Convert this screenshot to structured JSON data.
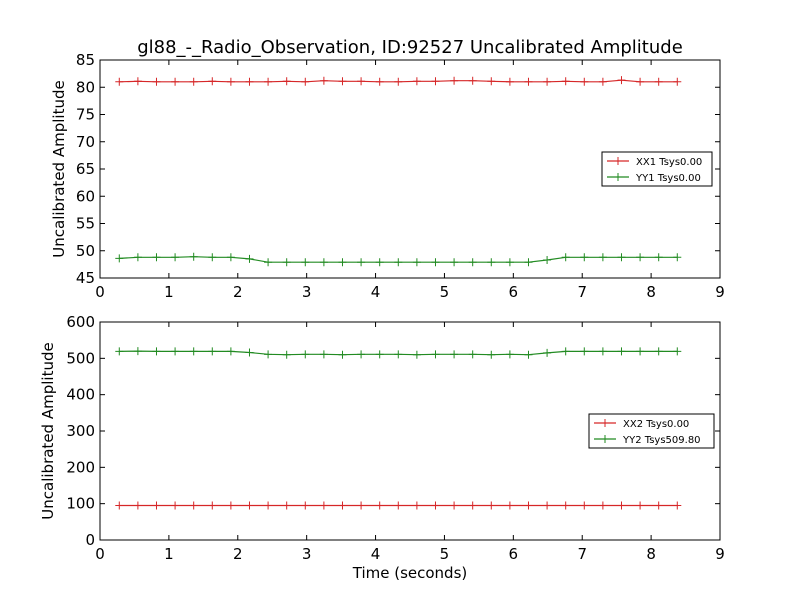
{
  "chart_data": [
    {
      "type": "line",
      "title": "gl88_-_Radio_Observation, ID:92527 Uncalibrated Amplitude",
      "xlabel": "",
      "ylabel": "Uncalibrated Amplitude",
      "xlim": [
        0,
        9
      ],
      "ylim": [
        45,
        85
      ],
      "xticks": [
        0,
        1,
        2,
        3,
        4,
        5,
        6,
        7,
        8,
        9
      ],
      "yticks": [
        45,
        50,
        55,
        60,
        65,
        70,
        75,
        80,
        85
      ],
      "legend": "center-right",
      "x": [
        0.28,
        0.55,
        0.82,
        1.09,
        1.36,
        1.63,
        1.9,
        2.17,
        2.44,
        2.71,
        2.98,
        3.25,
        3.52,
        3.79,
        4.06,
        4.33,
        4.6,
        4.87,
        5.14,
        5.41,
        5.68,
        5.95,
        6.22,
        6.49,
        6.76,
        7.03,
        7.3,
        7.57,
        7.84,
        8.11,
        8.38
      ],
      "series": [
        {
          "name": "XX1 Tsys0.00",
          "color": "#d62728",
          "values": [
            81.0,
            81.1,
            81.0,
            81.0,
            81.0,
            81.1,
            81.0,
            81.0,
            81.0,
            81.1,
            81.0,
            81.2,
            81.1,
            81.1,
            81.0,
            81.0,
            81.1,
            81.1,
            81.2,
            81.2,
            81.1,
            81.0,
            81.0,
            81.0,
            81.1,
            81.0,
            81.0,
            81.3,
            81.0,
            81.0,
            81.0
          ]
        },
        {
          "name": "YY1 Tsys0.00",
          "color": "#228b22",
          "values": [
            48.6,
            48.8,
            48.8,
            48.8,
            48.9,
            48.8,
            48.8,
            48.5,
            47.9,
            47.9,
            47.9,
            47.9,
            47.9,
            47.9,
            47.9,
            47.9,
            47.9,
            47.9,
            47.9,
            47.9,
            47.9,
            47.9,
            47.9,
            48.3,
            48.8,
            48.8,
            48.8,
            48.8,
            48.8,
            48.8,
            48.8
          ]
        }
      ]
    },
    {
      "type": "line",
      "title": "",
      "xlabel": "Time (seconds)",
      "ylabel": "Uncalibrated Amplitude",
      "xlim": [
        0,
        9
      ],
      "ylim": [
        0,
        600
      ],
      "xticks": [
        0,
        1,
        2,
        3,
        4,
        5,
        6,
        7,
        8,
        9
      ],
      "yticks": [
        0,
        100,
        200,
        300,
        400,
        500,
        600
      ],
      "legend": "center-right",
      "x": [
        0.28,
        0.55,
        0.82,
        1.09,
        1.36,
        1.63,
        1.9,
        2.17,
        2.44,
        2.71,
        2.98,
        3.25,
        3.52,
        3.79,
        4.06,
        4.33,
        4.6,
        4.87,
        5.14,
        5.41,
        5.68,
        5.95,
        6.22,
        6.49,
        6.76,
        7.03,
        7.3,
        7.57,
        7.84,
        8.11,
        8.38
      ],
      "series": [
        {
          "name": "XX2 Tsys0.00",
          "color": "#d62728",
          "values": [
            95,
            95,
            95,
            95,
            95,
            95,
            95,
            95,
            95,
            95,
            95,
            95,
            95,
            95,
            95,
            95,
            95,
            95,
            95,
            95,
            95,
            95,
            95,
            95,
            95,
            95,
            95,
            95,
            95,
            95,
            95
          ]
        },
        {
          "name": "YY2 Tsys509.80",
          "color": "#228b22",
          "values": [
            519,
            520,
            519,
            519,
            519,
            519,
            519,
            516,
            511,
            510,
            511,
            511,
            510,
            511,
            511,
            511,
            510,
            511,
            511,
            511,
            510,
            511,
            510,
            515,
            519,
            519,
            519,
            519,
            519,
            519,
            519
          ]
        }
      ]
    }
  ]
}
